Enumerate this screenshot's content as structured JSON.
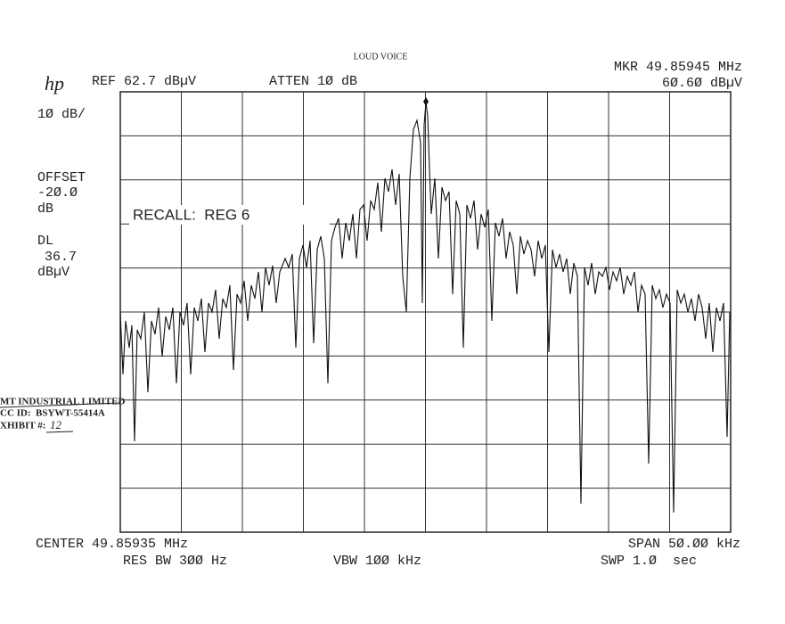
{
  "title": "LOUD VOICE",
  "header": {
    "logo": "hp",
    "ref": "REF 62.7 dBµV",
    "atten": "ATTEN 1Ø dB",
    "marker_freq": "MKR 49.85945 MHz",
    "marker_level": "6Ø.6Ø dBµV"
  },
  "left_panel": {
    "scale": "1Ø dB/",
    "offset_label": "OFFSET",
    "offset_value": "-2Ø.Ø",
    "offset_unit": "dB",
    "dl_label": "DL",
    "dl_value": "36.7",
    "dl_unit": "dBµV"
  },
  "annotation": "RECALL:  REG 6",
  "footer": {
    "center": "CENTER 49.85935 MHz",
    "res_bw": "RES BW 3ØØ Hz",
    "vbw": "VBW 1ØØ kHz",
    "span": "SPAN 5Ø.ØØ kHz",
    "sweep": "SWP 1.Ø  sec"
  },
  "stamp": {
    "company": "MT INDUSTRIAL LIMITED",
    "fcc_id": "CC ID:  BSYWT-55414A",
    "exhibit_label": "XHIBIT #:",
    "exhibit_number": "12"
  }
}
